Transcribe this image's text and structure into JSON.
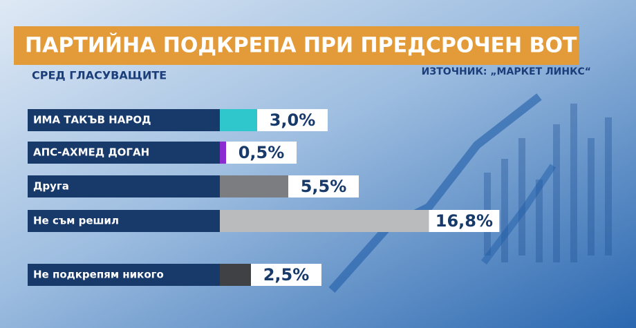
{
  "chart_data": {
    "type": "bar",
    "orientation": "horizontal",
    "title": "ПАРТИЙНА ПОДКРЕПА ПРИ ПРЕДСРОЧЕН ВОТ",
    "subtitle": "СРЕД ГЛАСУВАЩИТЕ",
    "source": "ИЗТОЧНИК: „МАРКЕТ ЛИНКС“",
    "categories": [
      "ИМА ТАКЪВ НАРОД",
      "АПС-АХМЕД ДОГАН",
      "Друга",
      "Не съм решил",
      "Не подкрепям никого"
    ],
    "values": [
      3.0,
      0.5,
      5.5,
      16.8,
      2.5
    ],
    "value_labels": [
      "3,0%",
      "0,5%",
      "5,5%",
      "16,8%",
      "2,5%"
    ],
    "colors": [
      "#2fc6cc",
      "#8a2ccf",
      "#7b7d80",
      "#b9bbbd",
      "#3f4144"
    ]
  }
}
